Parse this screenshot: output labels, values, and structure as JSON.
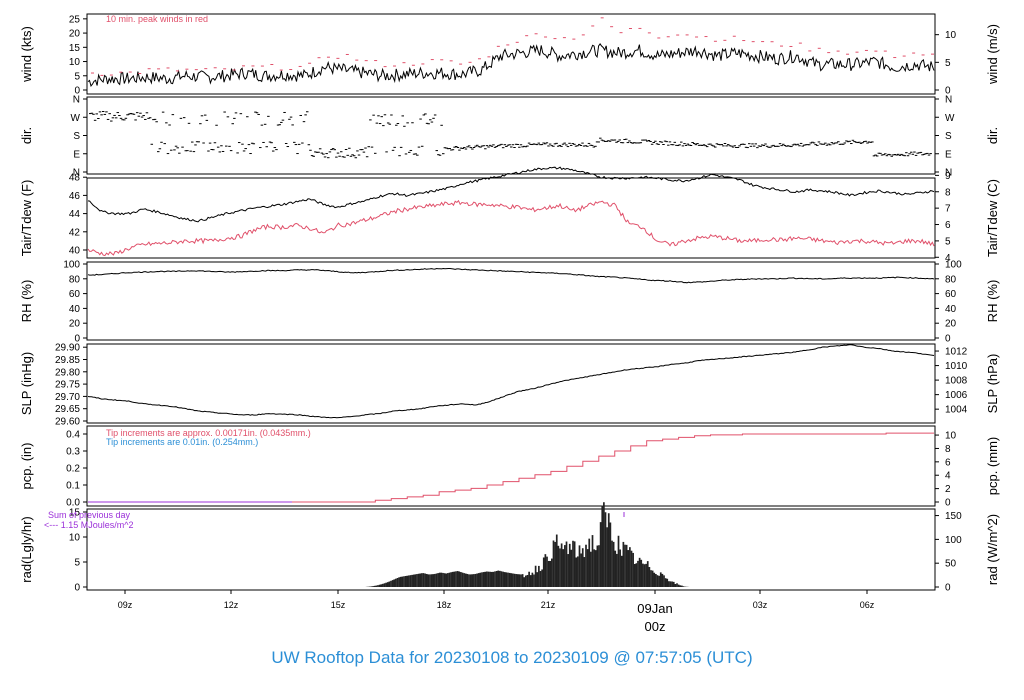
{
  "footer_title": "UW Rooftop Data for 20230108  to  20230109 @ 07:57:05  (UTC)",
  "colors": {
    "black": "#000000",
    "red": "#e0506a",
    "blue": "#2c8fd6",
    "purple": "#9b30d9",
    "date_red": "#e0506a"
  },
  "chart_data": {
    "x_ticks": [
      "09z",
      "12z",
      "15z",
      "18z",
      "21z",
      "09Jan",
      "03z",
      "06z"
    ],
    "x_date_label": "09Jan",
    "x_date_hour": "00z",
    "x_range": [
      "2023-01-08 08:00Z",
      "2023-01-09 07:57Z"
    ],
    "panels": [
      {
        "id": "wind",
        "type": "line",
        "ylabel_left": "wind (kts)",
        "ylabel_right": "wind (m/s)",
        "left_ticks": [
          "0",
          "5",
          "10",
          "15",
          "20",
          "25"
        ],
        "right_ticks": [
          "0",
          "5",
          "10"
        ],
        "ylim": [
          0,
          26
        ],
        "note": "10 min. peak winds in red",
        "series": [
          {
            "values": [
              3,
              4,
              4,
              4.5,
              4,
              5,
              4.5,
              5,
              6,
              5,
              5.5,
              5,
              8,
              7,
              6,
              5,
              5.5,
              6,
              6,
              5.5,
              7,
              12,
              13,
              14,
              12,
              13,
              14,
              13,
              14,
              12,
              13,
              14,
              12,
              13,
              12,
              11,
              12,
              9,
              9,
              9,
              10,
              8,
              9,
              8
            ]
          },
          {
            "values": [
              6,
              6,
              6,
              7,
              7,
              7,
              7,
              7,
              8,
              8,
              8,
              8,
              12,
              12,
              10,
              9,
              9,
              10,
              10,
              9,
              11,
              16,
              18,
              20,
              18,
              19,
              25,
              20,
              22,
              19,
              20,
              19,
              18,
              18,
              17,
              16,
              16,
              14,
              14,
              13,
              14,
              12,
              13,
              12
            ]
          }
        ]
      },
      {
        "id": "dir",
        "type": "scatter",
        "ylabel_left": "dir.",
        "ylabel_right": "dir.",
        "left_ticks": [
          "N",
          "E",
          "S",
          "W",
          "N"
        ],
        "right_ticks": [
          "N",
          "E",
          "S",
          "W",
          "N"
        ]
      },
      {
        "id": "temp",
        "type": "line",
        "ylabel_left": "Tair/Tdew (F)",
        "ylabel_right": "Tair/Tdew (C)",
        "left_ticks": [
          "40",
          "42",
          "44",
          "46",
          "48"
        ],
        "right_ticks": [
          "4",
          "5",
          "6",
          "7",
          "8",
          "9"
        ],
        "series": [
          {
            "values": [
              45.5,
              44.2,
              44.0,
              44.0,
              44.5,
              44.2,
              43.8,
              43.4,
              43.2,
              43.6,
              44.0,
              44.3,
              44.6,
              44.8,
              45.0,
              45.3,
              45.6,
              45.0,
              44.7,
              45.1,
              45.4,
              45.9,
              46.2,
              46.0,
              46.2,
              46.5,
              46.8,
              47.3,
              47.6,
              47.9,
              48.2,
              48.5,
              48.8,
              49.0,
              49.0,
              48.8,
              48.4,
              48.0,
              47.9,
              47.9,
              48.0,
              47.9,
              47.7,
              47.6,
              47.9,
              48.3,
              48.0,
              47.7,
              47.1,
              46.8,
              46.6,
              46.4,
              46.6,
              46.5,
              46.3,
              46.0,
              46.3,
              46.5,
              46.3,
              46.1,
              46.3,
              46.5
            ]
          },
          {
            "values": [
              40.0,
              39.6,
              39.6,
              40.2,
              40.6,
              40.7,
              40.8,
              41.0,
              41.0,
              41.0,
              41.3,
              41.5,
              42.2,
              42.6,
              42.5,
              42.7,
              42.4,
              41.8,
              42.7,
              42.9,
              43.3,
              43.7,
              44.2,
              44.5,
              44.7,
              44.9,
              45.1,
              45.2,
              45.0,
              45.0,
              44.8,
              44.7,
              44.4,
              44.6,
              44.9,
              44.3,
              44.8,
              45.3,
              44.9,
              42.9,
              42.5,
              41.1,
              40.5,
              41.0,
              41.3,
              41.5,
              41.3,
              41.0,
              41.0,
              41.2,
              41.1,
              41.3,
              41.2,
              41.0,
              40.8,
              41.0,
              41.0,
              40.8,
              40.7,
              41.0,
              41.0,
              40.6
            ]
          }
        ]
      },
      {
        "id": "rh",
        "type": "line",
        "ylabel_left": "RH (%)",
        "ylabel_right": "RH (%)",
        "left_ticks": [
          "0",
          "20",
          "40",
          "60",
          "80",
          "100"
        ],
        "right_ticks": [
          "0",
          "20",
          "40",
          "60",
          "80",
          "100"
        ],
        "ylim": [
          0,
          100
        ],
        "series": [
          {
            "values": [
              85,
              86,
              88,
              89,
              90,
              90,
              91,
              90,
              89,
              90,
              91,
              91,
              92,
              92,
              90,
              88,
              89,
              91,
              92,
              93,
              94,
              93,
              92,
              91,
              90,
              89,
              88,
              87,
              85,
              83,
              82,
              80,
              78,
              77,
              75,
              76,
              78,
              79,
              80,
              80,
              81,
              80,
              80,
              81,
              81,
              81,
              82,
              81,
              80
            ]
          }
        ]
      },
      {
        "id": "slp",
        "type": "line",
        "ylabel_left": "SLP (inHg)",
        "ylabel_right": "SLP (hPa)",
        "left_ticks": [
          "29.60",
          "29.65",
          "29.70",
          "29.75",
          "29.80",
          "29.85",
          "29.90"
        ],
        "right_ticks": [
          "1004",
          "1006",
          "1008",
          "1010",
          "1012"
        ],
        "ylim": [
          29.6,
          29.915
        ],
        "series": [
          {
            "values": [
              29.7,
              29.69,
              29.685,
              29.68,
              29.67,
              29.665,
              29.66,
              29.65,
              29.64,
              29.635,
              29.63,
              29.625,
              29.625,
              29.63,
              29.628,
              29.626,
              29.62,
              29.615,
              29.613,
              29.618,
              29.625,
              29.63,
              29.64,
              29.645,
              29.65,
              29.66,
              29.665,
              29.67,
              29.665,
              29.68,
              29.7,
              29.72,
              29.73,
              29.745,
              29.76,
              29.77,
              29.78,
              29.79,
              29.8,
              29.81,
              29.815,
              29.82,
              29.83,
              29.835,
              29.845,
              29.85,
              29.855,
              29.86,
              29.865,
              29.87,
              29.875,
              29.88,
              29.89,
              29.9,
              29.905,
              29.91,
              29.9,
              29.895,
              29.885,
              29.88,
              29.875,
              29.865
            ]
          }
        ]
      },
      {
        "id": "pcp",
        "type": "line",
        "ylabel_left": "pcp. (in)",
        "ylabel_right": "pcp. (mm)",
        "left_ticks": [
          "0.0",
          "0.1",
          "0.2",
          "0.3",
          "0.4"
        ],
        "right_ticks": [
          "0",
          "2",
          "4",
          "6",
          "8",
          "10"
        ],
        "ylim": [
          0,
          0.41
        ],
        "note_red": "Tip increments are approx. 0.00171in. (0.0435mm.)",
        "note_blue": "Tip increments are 0.01in. (0.254mm.)",
        "series": [
          {
            "values": [
              0,
              0,
              0,
              0,
              0,
              0,
              0,
              0,
              0,
              0,
              0,
              0,
              0,
              0,
              0,
              0,
              0,
              0,
              0.01,
              0.02,
              0.03,
              0.04,
              0.06,
              0.07,
              0.08,
              0.1,
              0.12,
              0.14,
              0.16,
              0.18,
              0.21,
              0.24,
              0.27,
              0.3,
              0.33,
              0.36,
              0.37,
              0.38,
              0.39,
              0.395,
              0.395,
              0.4,
              0.4,
              0.4,
              0.4,
              0.4,
              0.4,
              0.4,
              0.4,
              0.4,
              0.405,
              0.405,
              0.405,
              0.405
            ]
          }
        ]
      },
      {
        "id": "rad",
        "type": "area",
        "ylabel_left": "rad(Lgly/hr)",
        "ylabel_right": "rad (W/m^2)",
        "left_ticks": [
          "0",
          "5",
          "10",
          "15"
        ],
        "right_ticks": [
          "0",
          "50",
          "100",
          "150"
        ],
        "ylim": [
          0,
          15
        ],
        "note_top": "Sum of previous day",
        "note_bottom": "<--- 1.15 MJoules/m^2",
        "series": [
          {
            "values": [
              0,
              0.1,
              0.3,
              0.6,
              1.0,
              1.5,
              2.0,
              2.2,
              2.4,
              2.6,
              2.8,
              2.5,
              2.6,
              2.9,
              2.7,
              3.0,
              3.2,
              2.8,
              2.5,
              2.6,
              2.9,
              3.1,
              3.0,
              3.3,
              3.0,
              2.8,
              2.6,
              2.5,
              2.8,
              3.4,
              4.2,
              5.5,
              7.5,
              8.8,
              8.0,
              8.6,
              7.8,
              7.0,
              8.4,
              9.6,
              8.2,
              14.8,
              13.2,
              9.8,
              8.6,
              7.4,
              6.4,
              5.2,
              4.8,
              4.2,
              3.4,
              2.8,
              2.0,
              1.0,
              0.5,
              0.1,
              0
            ]
          }
        ]
      }
    ]
  }
}
